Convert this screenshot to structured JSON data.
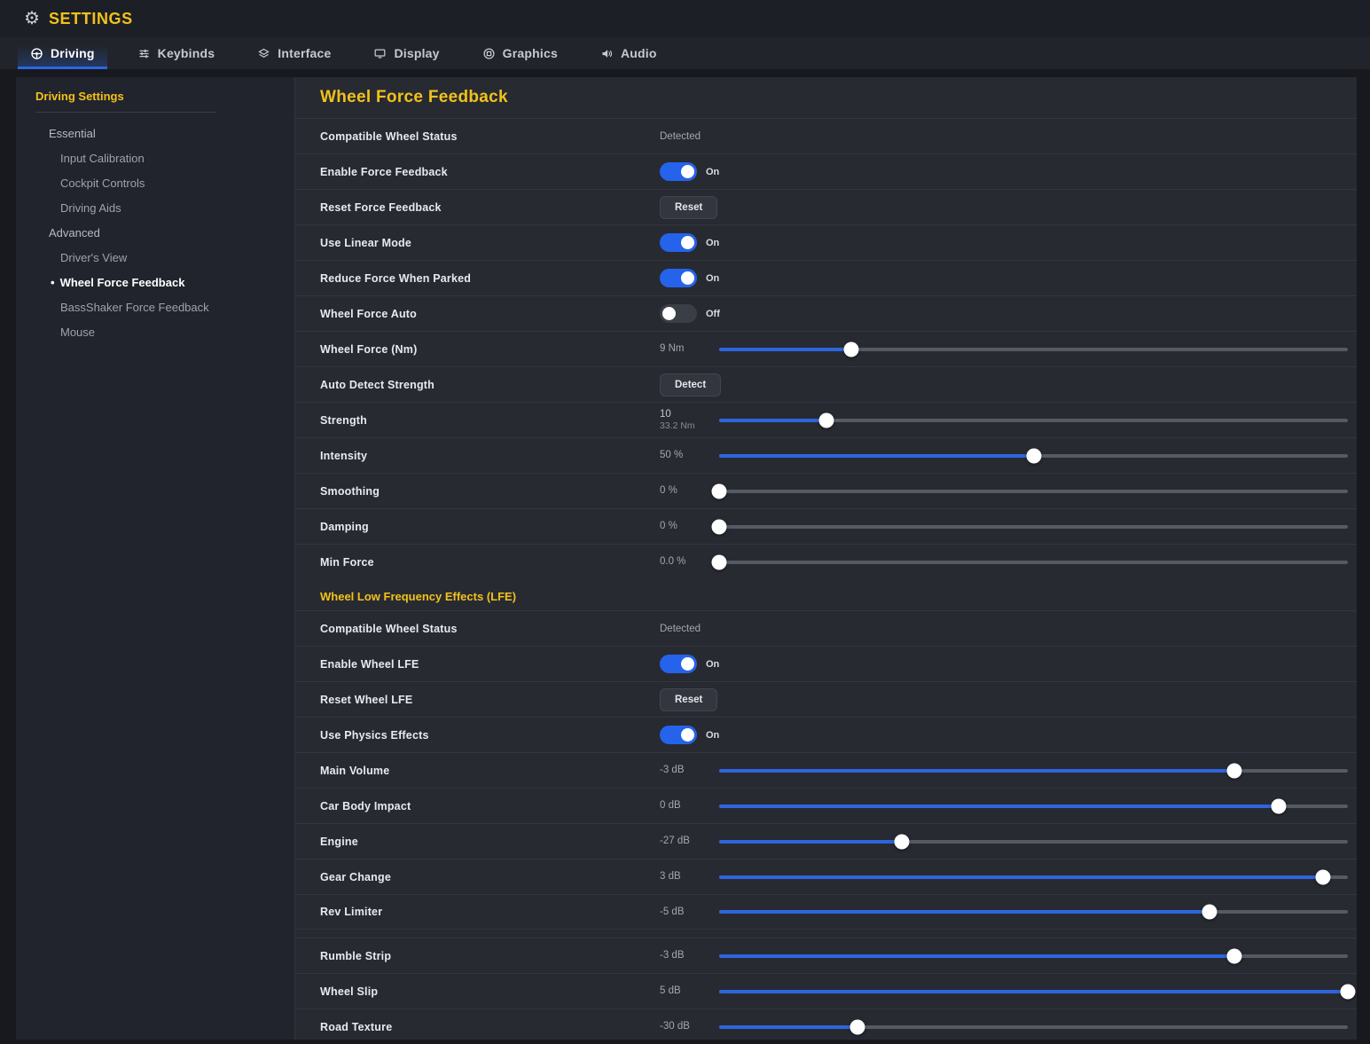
{
  "app": {
    "title": "SETTINGS",
    "window_icon": "gear-icon"
  },
  "tabs": [
    {
      "label": "Driving",
      "icon": "steering-wheel-icon",
      "active": true
    },
    {
      "label": "Keybinds",
      "icon": "sliders-icon",
      "active": false
    },
    {
      "label": "Interface",
      "icon": "layers-icon",
      "active": false
    },
    {
      "label": "Display",
      "icon": "monitor-icon",
      "active": false
    },
    {
      "label": "Graphics",
      "icon": "gpu-icon",
      "active": false
    },
    {
      "label": "Audio",
      "icon": "speaker-icon",
      "active": false
    }
  ],
  "sidebar": {
    "title": "Driving Settings",
    "items": [
      {
        "label": "Essential",
        "level": "group",
        "active": false
      },
      {
        "label": "Input Calibration",
        "level": "sub",
        "active": false
      },
      {
        "label": "Cockpit Controls",
        "level": "sub",
        "active": false
      },
      {
        "label": "Driving Aids",
        "level": "sub",
        "active": false
      },
      {
        "label": "Advanced",
        "level": "group",
        "active": false
      },
      {
        "label": "Driver's View",
        "level": "sub",
        "active": false
      },
      {
        "label": "Wheel Force Feedback",
        "level": "sub",
        "active": true
      },
      {
        "label": "BassShaker Force Feedback",
        "level": "sub",
        "active": false
      },
      {
        "label": "Mouse",
        "level": "sub",
        "active": false
      }
    ]
  },
  "content": {
    "sections": [
      {
        "title": "Wheel Force Feedback",
        "rows": [
          {
            "label": "Compatible Wheel Status",
            "control": "static",
            "value": "Detected"
          },
          {
            "label": "Enable Force Feedback",
            "control": "toggle",
            "state": "On"
          },
          {
            "label": "Reset Force Feedback",
            "control": "button",
            "button_label": "Reset"
          },
          {
            "label": "Use Linear Mode",
            "control": "toggle",
            "state": "On"
          },
          {
            "label": "Reduce Force When Parked",
            "control": "toggle",
            "state": "On"
          },
          {
            "label": "Wheel Force Auto",
            "control": "toggle",
            "state": "Off"
          },
          {
            "label": "Wheel Force (Nm)",
            "control": "slider",
            "value": "9 Nm",
            "percent": 21
          },
          {
            "label": "Auto Detect Strength",
            "control": "button",
            "button_label": "Detect"
          },
          {
            "label": "Strength",
            "control": "slider",
            "value": "10",
            "value_secondary": "33.2 Nm",
            "percent": 17
          },
          {
            "label": "Intensity",
            "control": "slider",
            "value": "50 %",
            "percent": 50
          },
          {
            "label": "Smoothing",
            "control": "slider",
            "value": "0 %",
            "percent": 0
          },
          {
            "label": "Damping",
            "control": "slider",
            "value": "0 %",
            "percent": 0
          },
          {
            "label": "Min Force",
            "control": "slider",
            "value": "0.0 %",
            "percent": 0
          }
        ]
      },
      {
        "title": "Wheel Low Frequency Effects (LFE)",
        "rows": [
          {
            "label": "Compatible Wheel Status",
            "control": "static",
            "value": "Detected"
          },
          {
            "label": "Enable Wheel LFE",
            "control": "toggle",
            "state": "On"
          },
          {
            "label": "Reset Wheel LFE",
            "control": "button",
            "button_label": "Reset"
          },
          {
            "label": "Use Physics Effects",
            "control": "toggle",
            "state": "On"
          },
          {
            "label": "Main Volume",
            "control": "slider",
            "value": "-3 dB",
            "percent": 82
          },
          {
            "label": "Car Body Impact",
            "control": "slider",
            "value": "0 dB",
            "percent": 89
          },
          {
            "label": "Engine",
            "control": "slider",
            "value": "-27 dB",
            "percent": 29
          },
          {
            "label": "Gear Change",
            "control": "slider",
            "value": "3 dB",
            "percent": 96
          },
          {
            "label": "Rev Limiter",
            "control": "slider",
            "value": "-5 dB",
            "percent": 78,
            "group_end": true
          },
          {
            "label": "Rumble Strip",
            "control": "slider",
            "value": "-3 dB",
            "percent": 82,
            "gap_before": true
          },
          {
            "label": "Wheel Slip",
            "control": "slider",
            "value": "5 dB",
            "percent": 100
          },
          {
            "label": "Road Texture",
            "control": "slider",
            "value": "-30 dB",
            "percent": 22
          }
        ]
      }
    ]
  },
  "colors": {
    "accent_yellow": "#f2c219",
    "accent_blue": "#2b68e0",
    "toggle_on_blue": "#2563eb",
    "slider_fill_blue": "#2d66dd"
  }
}
